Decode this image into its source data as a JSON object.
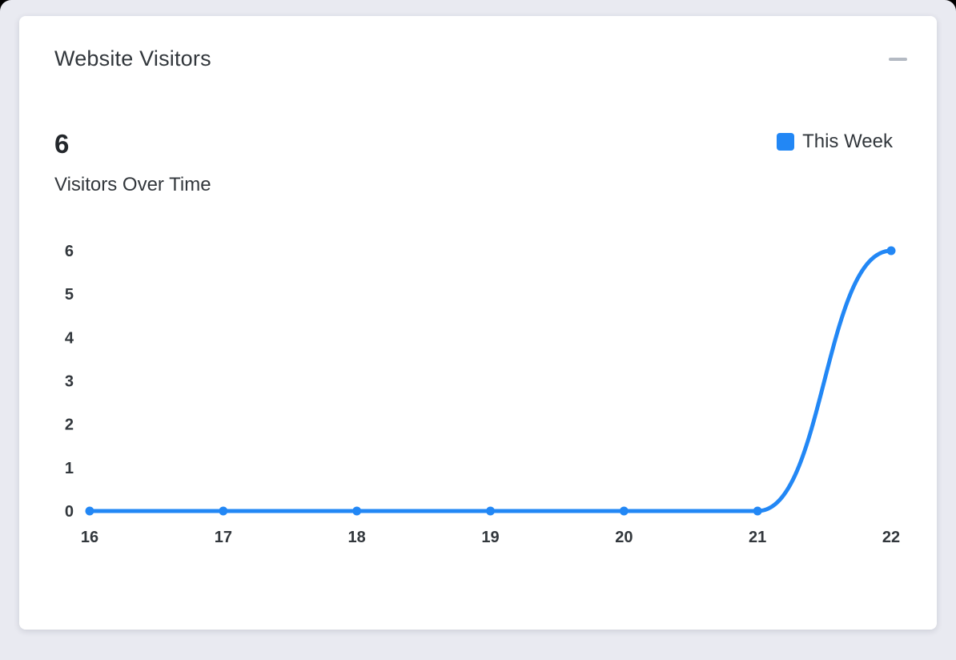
{
  "page": {
    "background": "#e9eaf1"
  },
  "card": {
    "title": "Website Visitors",
    "stat_value": "6",
    "stat_label": "Visitors Over Time",
    "legend": {
      "label": "This Week",
      "color": "#2287f5"
    },
    "collapse_icon": "minus-icon"
  },
  "chart_data": {
    "type": "line",
    "title": "Visitors Over Time",
    "x": [
      16,
      17,
      18,
      19,
      20,
      21,
      22
    ],
    "series": [
      {
        "name": "This Week",
        "values": [
          0,
          0,
          0,
          0,
          0,
          0,
          6
        ]
      }
    ],
    "xlabel": "",
    "ylabel": "",
    "ylim": [
      0,
      6
    ],
    "yticks": [
      0,
      1,
      2,
      3,
      4,
      5,
      6
    ],
    "grid": false,
    "legend_position": "top-right",
    "line_color": "#2287f5",
    "smooth": true
  }
}
